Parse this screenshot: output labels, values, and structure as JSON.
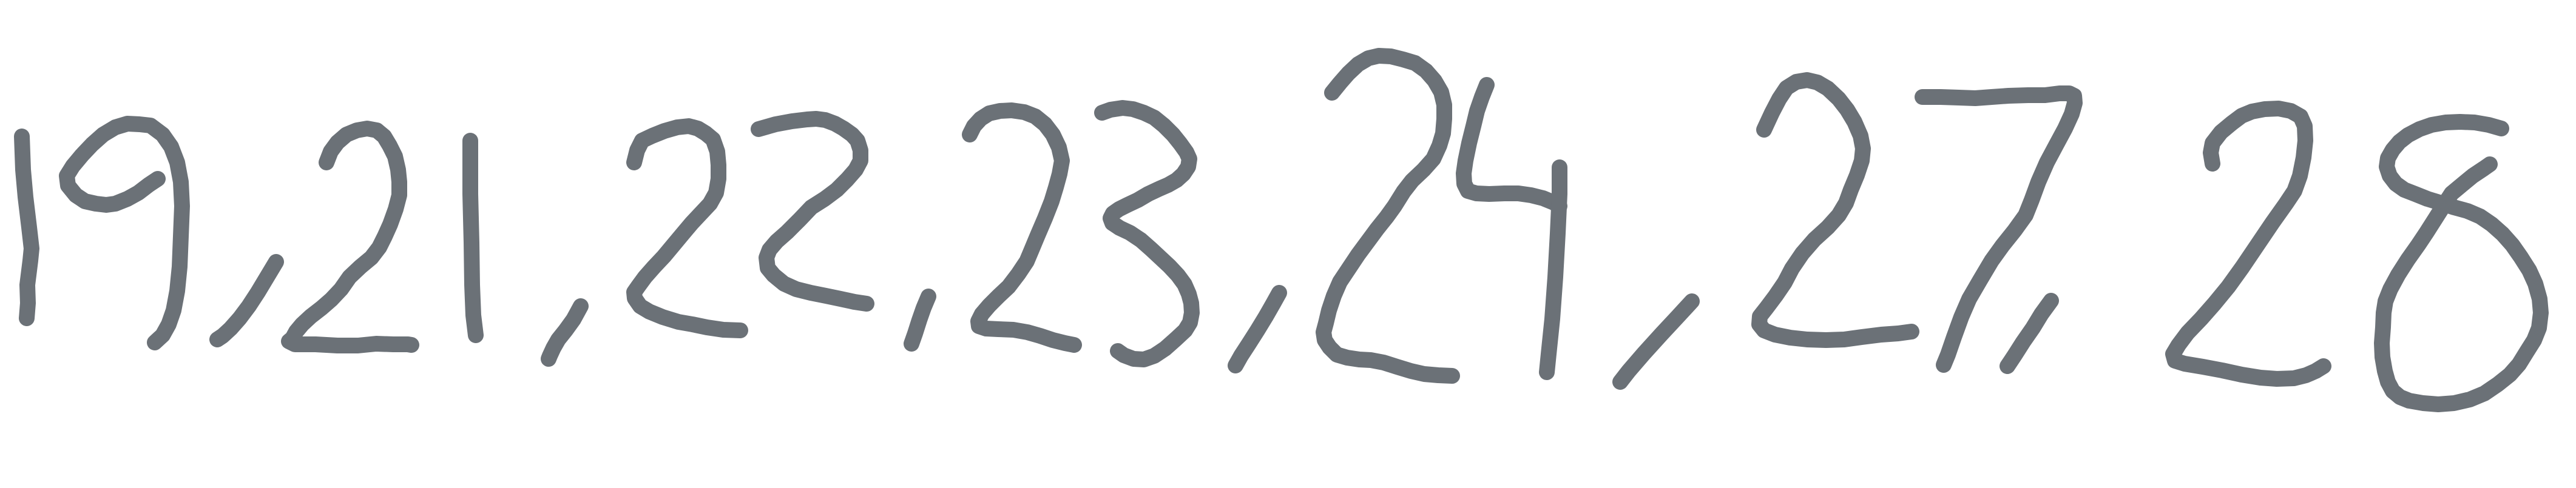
{
  "handwriting": {
    "text": "19,21,22,23,24,27,28",
    "tokens": [
      "19",
      ",",
      "21",
      ",",
      "22",
      ",",
      "23",
      ",",
      "24",
      ",",
      "27",
      ",",
      "28"
    ],
    "ink_color": "#6b7177",
    "background": "#ffffff"
  }
}
